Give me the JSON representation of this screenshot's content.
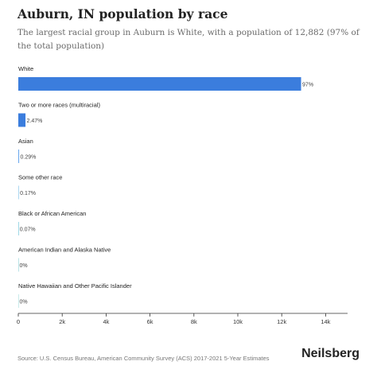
{
  "title": "Auburn, IN population by race",
  "subtitle": "The largest racial group in Auburn is White, with a population of 12,882 (97% of the total population)",
  "source": "Source: U.S. Census Bureau, American Community Survey (ACS) 2017-2021 5-Year Estimates",
  "brand": "Neilsberg",
  "chart_data": {
    "type": "bar",
    "orientation": "horizontal",
    "categories": [
      "White",
      "Two or more races (multiracial)",
      "Asian",
      "Some other race",
      "Black or African American",
      "American Indian and Alaska Native",
      "Native Hawaiian and Other Pacific Islander"
    ],
    "values": [
      12882,
      328,
      38,
      23,
      9,
      0,
      0
    ],
    "data_labels": [
      "97%",
      "2.47%",
      "0.29%",
      "0.17%",
      "0.07%",
      "0%",
      "0%"
    ],
    "xticks": [
      0,
      2000,
      4000,
      6000,
      8000,
      10000,
      12000,
      14000
    ],
    "xtick_labels": [
      "0",
      "2k",
      "4k",
      "6k",
      "8k",
      "10k",
      "12k",
      "14k"
    ],
    "xlim": [
      0,
      15000
    ],
    "colors": [
      "#3b7ddd",
      "#3b7ddd",
      "#6aa8ee",
      "#7cc0e8",
      "#9fd8e6",
      "#b9e3e6",
      "#c9eaea"
    ],
    "grid": false,
    "legend": "none"
  }
}
